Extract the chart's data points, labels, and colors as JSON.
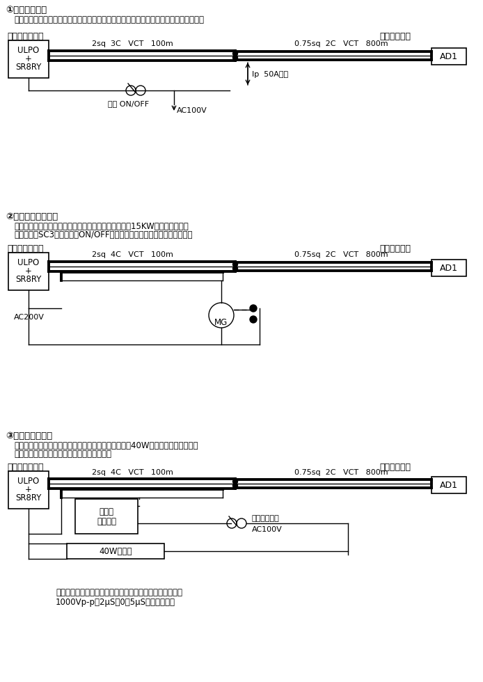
{
  "bg_color": "#ffffff",
  "section1": {
    "title": "①突入電流試験",
    "desc1": "伝送の信号線と同一ケーブル内の１本の線に交流の大電流を断続して流して試験した。",
    "main_unit_label": "メインユニット",
    "input_unit_label": "入力ユニット",
    "box_main_line1": "ULPO",
    "box_main_line2": "+",
    "box_main_line3": "SR8RY",
    "cable1_label": "2sq  3C   VCT   100m",
    "cable2_label": "0.75sq  2C   VCT   800m",
    "box_ad": "AD1",
    "arrow_label": "Ip  50A以上",
    "switch_label": "瞬時 ON/OFF",
    "ac_label": "AC100V"
  },
  "section2": {
    "title": "②コイルサージ試験",
    "desc1": "伝送の信号線と同一ケーブル内の２本の線を利用した15KW用のマグネット",
    "desc2": "（富士電機SC3）を高速でON/OFFして逆起電力を発生させて試験した。",
    "main_unit_label": "メインユニット",
    "input_unit_label": "入力ユニット",
    "box_main_line1": "ULPO",
    "box_main_line2": "+",
    "box_main_line3": "SR8RY",
    "cable1_label": "2sq  4C   VCT   100m",
    "cable2_label": "0.75sq  2C   VCT   800m",
    "box_ad": "AD1",
    "mg_label": "MG",
    "ac_label": "AC200V"
  },
  "section3": {
    "title": "③グロー放電試験",
    "desc1": "伝送の信号線と同一ケーブル内の１本の線を利用して40W用の蛍光灯を断続して",
    "desc2": "して点灯させてオシロスコープで観察した。",
    "main_unit_label": "メインユニット",
    "input_unit_label": "入力ユニット",
    "box_main_line1": "ULPO",
    "box_main_line2": "+",
    "box_main_line3": "SR8RY",
    "cable1_label": "2sq  4C   VCT   100m",
    "cable2_label": "0.75sq  2C   VCT   800m",
    "box_ad": "AD1",
    "scope_line1": "オシロ",
    "scope_line2": "スコープ",
    "flicker_label": "フリカー接点",
    "ac_label": "AC100V",
    "lamp_label": "40W蛍光灯",
    "note1": "同一ケーブル内の誘導電圧はオシロスコープで測定すると",
    "note2": "1000Vp-p（2μS～0．5μS）に達した。"
  }
}
